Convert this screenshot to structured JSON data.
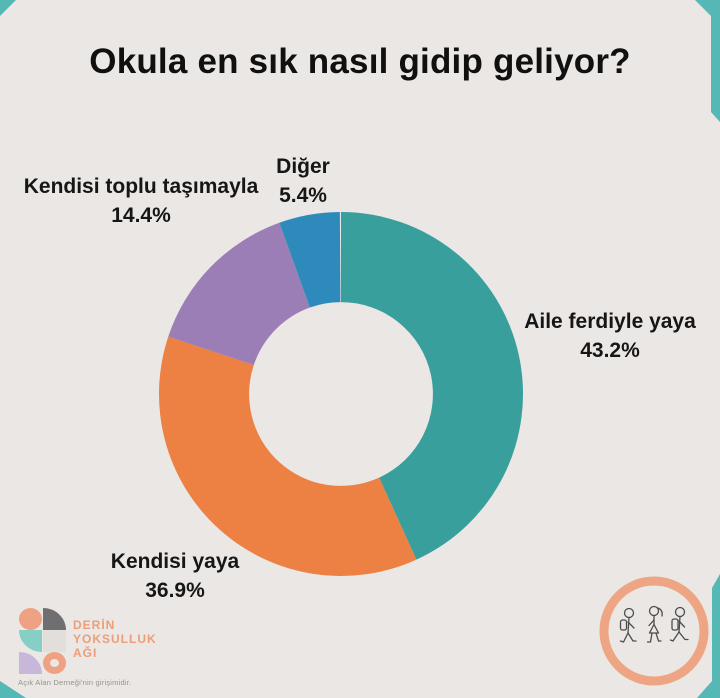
{
  "title": "Okula en sık nasıl gidip geliyor?",
  "chart_data": {
    "type": "pie",
    "variant": "donut",
    "title": "Okula en sık nasıl gidip geliyor?",
    "direction": "clockwise",
    "start_angle_deg": 0,
    "inner_radius_ratio": 0.505,
    "legend_position": "around-chart",
    "segments": [
      {
        "label": "Aile ferdiyle yaya",
        "value": 43.2,
        "pct": "43.2%",
        "color": "#389f9d"
      },
      {
        "label": "Kendisi yaya",
        "value": 36.9,
        "pct": "36.9%",
        "color": "#ed8043"
      },
      {
        "label": "Kendisi toplu taşımayla",
        "value": 14.4,
        "pct": "14.4%",
        "color": "#9a7eb5"
      },
      {
        "label": "Diğer",
        "value": 5.4,
        "pct": "5.4%",
        "color": "#2f8abc"
      }
    ]
  },
  "footer": {
    "logo_lines": [
      "DERİN",
      "YOKSULLUK",
      "AĞI"
    ],
    "logo_tagline": "Açık Alan Derneği'nin girişimidir.",
    "badge_icon": "walking-children-sketch"
  },
  "colors": {
    "background_card": "#eae7e4",
    "corner_accent_teal": "#55b8b4",
    "logo_salmon": "#ee9d79",
    "badge_ring_salmon": "#eea584",
    "text_dark": "#161616"
  }
}
